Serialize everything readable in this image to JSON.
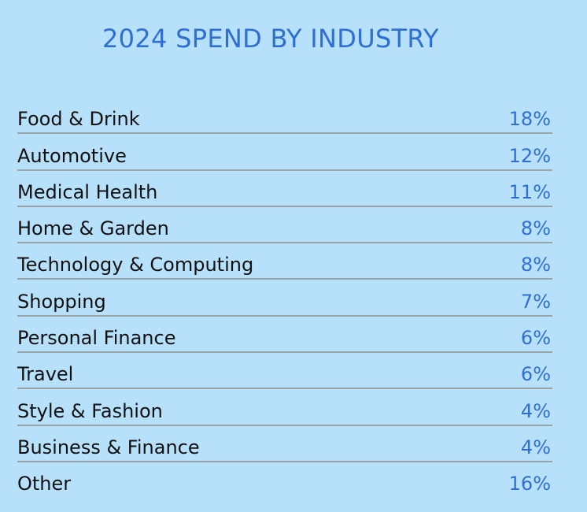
{
  "title": "2024 SPEND BY INDUSTRY",
  "rows": [
    {
      "label": "Food & Drink",
      "value": "18%"
    },
    {
      "label": "Automotive",
      "value": "12%"
    },
    {
      "label": "Medical Health",
      "value": "11%"
    },
    {
      "label": "Home & Garden",
      "value": "8%"
    },
    {
      "label": "Technology & Computing",
      "value": "8%"
    },
    {
      "label": "Shopping",
      "value": "7%"
    },
    {
      "label": "Personal Finance",
      "value": "6%"
    },
    {
      "label": "Travel",
      "value": "6%"
    },
    {
      "label": "Style & Fashion",
      "value": "4%"
    },
    {
      "label": "Business & Finance",
      "value": "4%"
    },
    {
      "label": "Other",
      "value": "16%"
    }
  ]
}
